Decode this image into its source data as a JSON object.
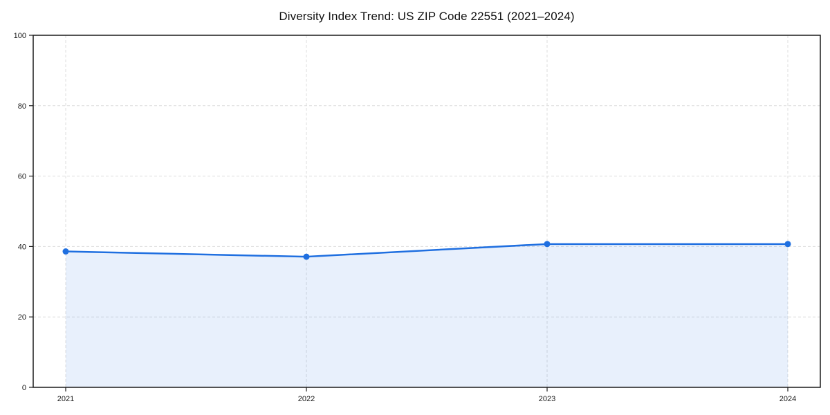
{
  "chart_data": {
    "type": "area",
    "title": "Diversity Index Trend: US ZIP Code 22551 (2021–2024)",
    "categories": [
      "2021",
      "2022",
      "2023",
      "2024"
    ],
    "series": [
      {
        "name": "Diversity Index",
        "values": [
          38.6,
          37.1,
          40.7,
          40.7
        ]
      }
    ],
    "xlabel": "",
    "ylabel": "",
    "ylim": [
      0,
      100
    ],
    "yticks": [
      0,
      20,
      40,
      60,
      80,
      100
    ],
    "grid": "dashed, both axes",
    "legend_position": "none",
    "line_color": "#1f6fe0",
    "marker_color": "#1f6fe0",
    "fill_color": "#1f6fe0",
    "fill_opacity": 0.1,
    "gridline_color": "#dcdcdc",
    "spine_color": "#1a1a1a",
    "background_color": "#ffffff"
  }
}
